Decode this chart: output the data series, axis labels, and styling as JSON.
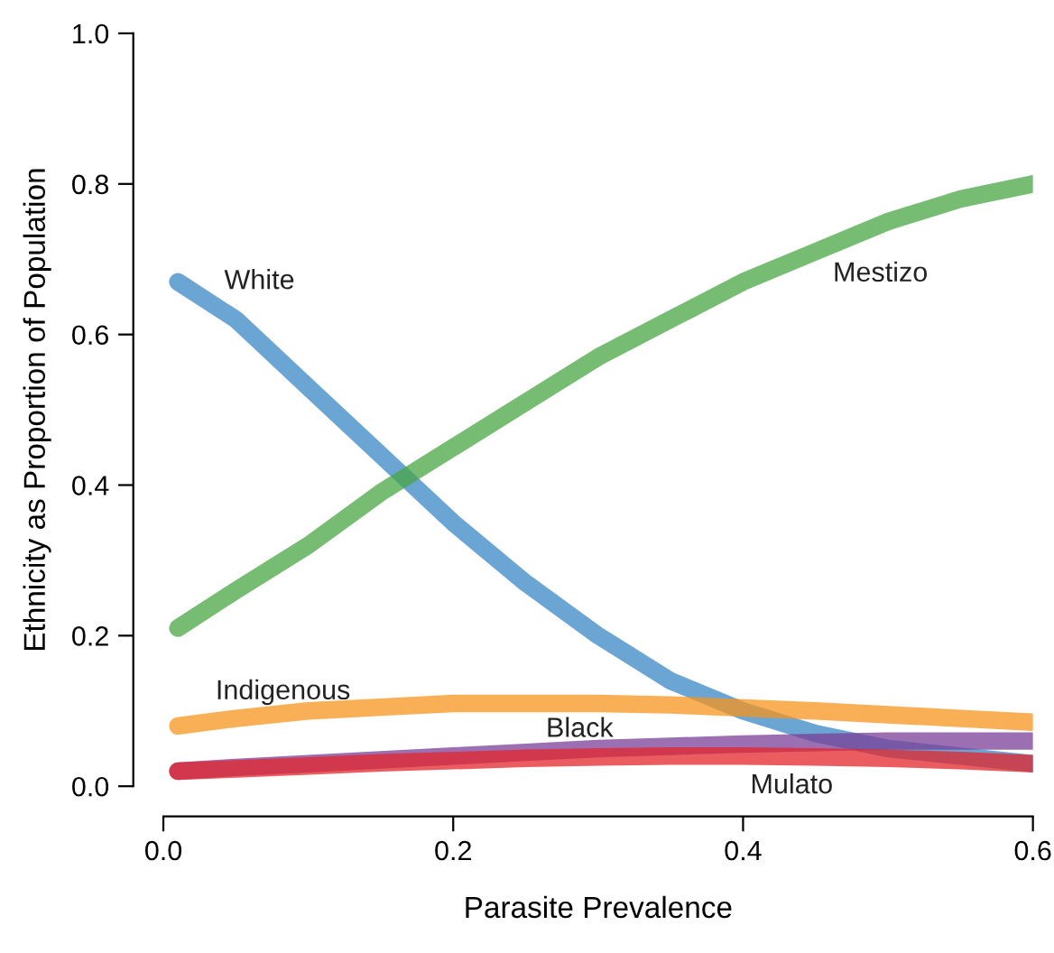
{
  "chart_data": {
    "type": "line",
    "xlabel": "Parasite Prevalence",
    "ylabel": "Ethnicity as Proportion of Population",
    "x": [
      0.01,
      0.05,
      0.1,
      0.15,
      0.2,
      0.25,
      0.3,
      0.35,
      0.4,
      0.45,
      0.5,
      0.55,
      0.6
    ],
    "xlim": [
      0,
      0.6
    ],
    "ylim": [
      0,
      1.0
    ],
    "xticks": [
      {
        "value": 0,
        "label": "0.0"
      },
      0.2,
      0.4,
      0.6
    ],
    "yticks": [
      {
        "value": 0,
        "label": "0.0"
      },
      0.2,
      0.4,
      0.6,
      0.8,
      {
        "value": 1,
        "label": "1.0"
      }
    ],
    "grid": false,
    "legend": false,
    "marker": "none",
    "line_style": "solid",
    "series": [
      {
        "name": "White",
        "color": "#3a87c4",
        "values": [
          0.67,
          0.62,
          0.53,
          0.44,
          0.35,
          0.27,
          0.2,
          0.14,
          0.1,
          0.07,
          0.05,
          0.04,
          0.03
        ]
      },
      {
        "name": "Mestizo",
        "color": "#4aa544",
        "values": [
          0.21,
          0.26,
          0.32,
          0.39,
          0.45,
          0.51,
          0.57,
          0.62,
          0.67,
          0.71,
          0.75,
          0.78,
          0.8
        ]
      },
      {
        "name": "Indigenous",
        "color": "#f7941d",
        "values": [
          0.08,
          0.09,
          0.1,
          0.105,
          0.11,
          0.11,
          0.11,
          0.108,
          0.104,
          0.1,
          0.095,
          0.09,
          0.085
        ]
      },
      {
        "name": "Black",
        "color": "#7b3f98",
        "values": [
          0.02,
          0.025,
          0.03,
          0.035,
          0.04,
          0.045,
          0.05,
          0.053,
          0.056,
          0.058,
          0.06,
          0.06,
          0.06
        ]
      },
      {
        "name": "Mulato",
        "color": "#e3262b",
        "values": [
          0.02,
          0.023,
          0.027,
          0.031,
          0.034,
          0.037,
          0.039,
          0.04,
          0.04,
          0.039,
          0.037,
          0.034,
          0.03
        ]
      }
    ]
  }
}
